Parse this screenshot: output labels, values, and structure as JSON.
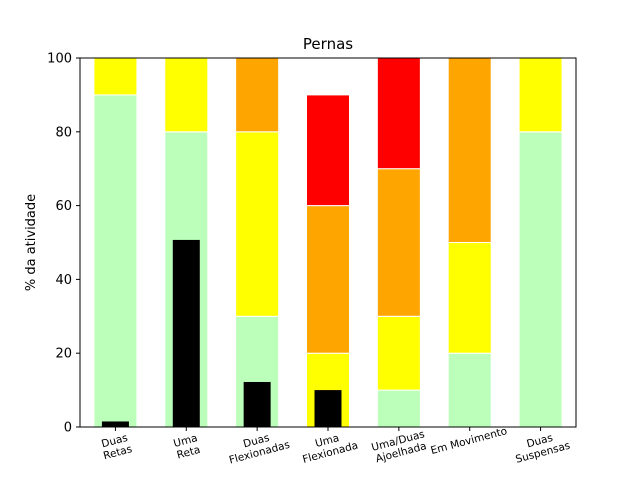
{
  "chart_data": {
    "type": "bar",
    "stacked": true,
    "title": "Pernas",
    "xlabel": "",
    "ylabel": "% da atividade",
    "ylim": [
      0,
      100
    ],
    "yticks": [
      0,
      20,
      40,
      60,
      80,
      100
    ],
    "grid": false,
    "legend": "none",
    "categories": [
      "Duas\nRetas",
      "Uma\nReta",
      "Duas\nFlexionadas",
      "Uma\nFlexionada",
      "Uma/Duas\nAjoelhada",
      "Em Movimento",
      "Duas\nSuspensas"
    ],
    "stack_series": [
      {
        "color": "#bbffbb",
        "values": [
          90,
          80,
          30,
          0,
          10,
          20,
          80
        ]
      },
      {
        "color": "#ffff00",
        "values": [
          10,
          20,
          50,
          20,
          20,
          30,
          20
        ]
      },
      {
        "color": "#ffa500",
        "values": [
          0,
          0,
          20,
          40,
          40,
          50,
          0
        ]
      },
      {
        "color": "#ff0000",
        "values": [
          0,
          0,
          0,
          30,
          30,
          0,
          0
        ]
      }
    ],
    "overlay_series": {
      "color": "#000000",
      "values": [
        1.5,
        50.7,
        12.2,
        10,
        0,
        0,
        0
      ]
    }
  }
}
